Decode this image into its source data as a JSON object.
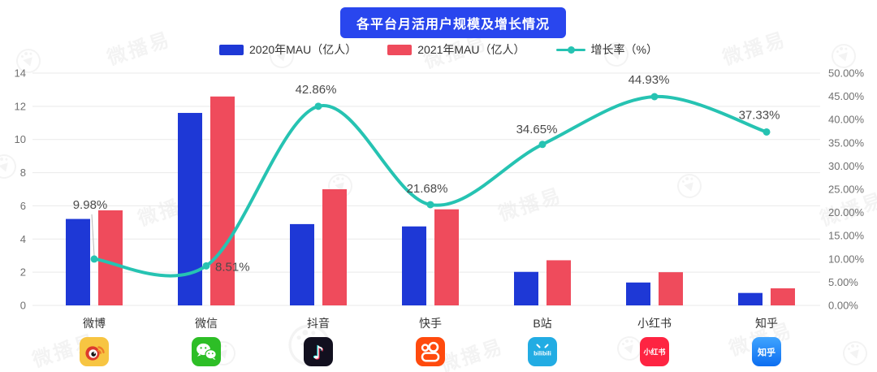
{
  "title": "各平台月活用户规模及增长情况",
  "watermark_text": "微播易",
  "colors": {
    "title_bg": "#2946ee",
    "bar_2020": "#1e38d6",
    "bar_2021": "#ef4b5c",
    "growth_line": "#26c3b2",
    "grid": "#e9e9e9",
    "axis_text": "#707070",
    "point_label": "#4a4a4a"
  },
  "chart_data": {
    "type": "bar",
    "subtype": "grouped-bars-with-line-overlay",
    "title": "各平台月活用户规模及增长情况",
    "categories": [
      "微博",
      "微信",
      "抖音",
      "快手",
      "B站",
      "小红书",
      "知乎"
    ],
    "series": [
      {
        "name": "2020年MAU（亿人）",
        "type": "bar",
        "color": "#1e38d6",
        "values": [
          5.21,
          11.6,
          4.9,
          4.76,
          2.02,
          1.38,
          0.75
        ]
      },
      {
        "name": "2021年MAU（亿人）",
        "type": "bar",
        "color": "#ef4b5c",
        "values": [
          5.73,
          12.59,
          7.0,
          5.79,
          2.72,
          2.0,
          1.03
        ]
      },
      {
        "name": "增长率（%）",
        "type": "line",
        "color": "#26c3b2",
        "axis": "right",
        "values": [
          9.98,
          8.51,
          42.86,
          21.68,
          34.65,
          44.93,
          37.33
        ],
        "labels": [
          "9.98%",
          "8.51%",
          "42.86%",
          "21.68%",
          "34.65%",
          "44.93%",
          "37.33%"
        ]
      }
    ],
    "left_axis": {
      "min": 0,
      "max": 14,
      "step": 2,
      "ticks": [
        "0",
        "2",
        "4",
        "6",
        "8",
        "10",
        "12",
        "14"
      ]
    },
    "right_axis": {
      "min": 0,
      "max": 50,
      "step": 5,
      "ticks": [
        "0.00%",
        "5.00%",
        "10.00%",
        "15.00%",
        "20.00%",
        "25.00%",
        "30.00%",
        "35.00%",
        "40.00%",
        "45.00%",
        "50.00%"
      ]
    },
    "grid": true,
    "legend_position": "top"
  },
  "platforms": [
    {
      "id": "weibo",
      "label": "微博"
    },
    {
      "id": "wechat",
      "label": "微信"
    },
    {
      "id": "douyin",
      "label": "抖音"
    },
    {
      "id": "kuaishou",
      "label": "快手"
    },
    {
      "id": "bilibili",
      "label": "B站",
      "icon_text": "bilibili"
    },
    {
      "id": "xiaohongshu",
      "label": "小红书",
      "icon_text": "小红书"
    },
    {
      "id": "zhihu",
      "label": "知乎",
      "icon_text": "知乎"
    }
  ]
}
